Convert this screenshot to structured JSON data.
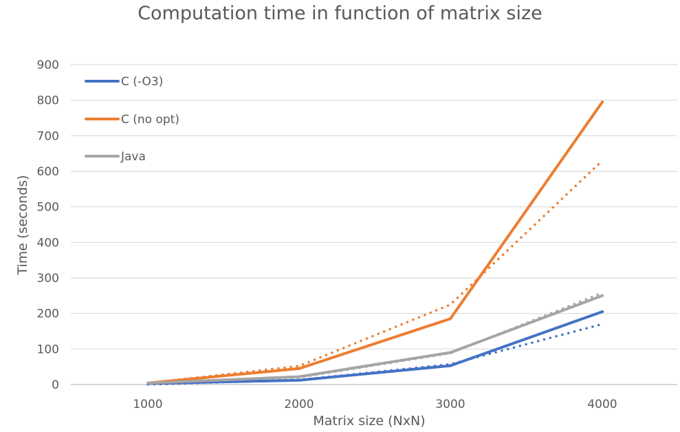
{
  "chart_data": {
    "type": "line",
    "title": "Computation time in function of matrix size",
    "xlabel": "Matrix size (NxN)",
    "ylabel": "Time (seconds)",
    "categories": [
      "1000",
      "2000",
      "3000",
      "4000"
    ],
    "yticks": [
      "0",
      "100",
      "200",
      "300",
      "400",
      "500",
      "600",
      "700",
      "800",
      "900"
    ],
    "ylim": [
      0,
      900
    ],
    "grid": true,
    "legend_position": "top-left",
    "series": [
      {
        "name": "C (-O3)",
        "color": "#4472C4",
        "values": [
          3,
          12,
          53,
          205
        ],
        "trendline": [
          0,
          13,
          57,
          170
        ]
      },
      {
        "name": "C (no opt)",
        "color": "#ED7D31",
        "values": [
          4,
          45,
          185,
          795
        ],
        "trendline": [
          4,
          52,
          225,
          630
        ]
      },
      {
        "name": "Java",
        "color": "#A5A5A5",
        "values": [
          4,
          22,
          90,
          250
        ],
        "trendline": [
          2,
          20,
          88,
          258
        ]
      }
    ]
  }
}
